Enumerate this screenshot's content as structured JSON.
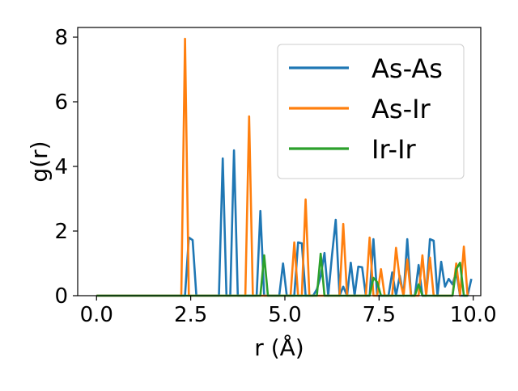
{
  "chart_data": {
    "type": "line",
    "title": "",
    "xlabel": "r (Å)",
    "ylabel": "g(r)",
    "xlim": [
      -0.5,
      10.2
    ],
    "ylim": [
      0,
      8.3
    ],
    "xticks": [
      0.0,
      2.5,
      5.0,
      7.5,
      10.0
    ],
    "xtick_labels": [
      "0.0",
      "2.5",
      "5.0",
      "7.5",
      "10.0"
    ],
    "yticks": [
      0,
      2,
      4,
      6,
      8
    ],
    "ytick_labels": [
      "0",
      "2",
      "4",
      "6",
      "8"
    ],
    "legend": {
      "position": "upper-right",
      "entries": [
        "As-As",
        "As-Ir",
        "Ir-Ir"
      ]
    },
    "grid": false,
    "series": [
      {
        "name": "As-As",
        "color": "#1f77b4",
        "x": [
          0.0,
          2.35,
          2.45,
          2.55,
          2.65,
          2.75,
          3.25,
          3.35,
          3.45,
          3.55,
          3.65,
          3.75,
          4.25,
          4.35,
          4.45,
          4.85,
          4.95,
          5.05,
          5.25,
          5.35,
          5.45,
          5.55,
          5.65,
          5.75,
          5.85,
          5.95,
          6.05,
          6.15,
          6.25,
          6.35,
          6.45,
          6.55,
          6.65,
          6.75,
          6.85,
          6.95,
          7.05,
          7.15,
          7.25,
          7.35,
          7.45,
          7.55,
          7.65,
          7.75,
          7.85,
          7.95,
          8.05,
          8.15,
          8.25,
          8.35,
          8.45,
          8.55,
          8.65,
          8.75,
          8.85,
          8.95,
          9.05,
          9.15,
          9.25,
          9.35,
          9.45,
          9.55,
          9.65,
          9.75,
          9.85,
          9.95
        ],
        "y": [
          0.0,
          0.0,
          1.8,
          1.72,
          0.0,
          0.0,
          0.0,
          4.25,
          0.0,
          0.0,
          4.5,
          0.0,
          0.0,
          2.62,
          0.0,
          0.0,
          1.0,
          0.0,
          0.0,
          1.65,
          1.62,
          0.0,
          0.0,
          0.0,
          0.2,
          0.6,
          1.32,
          0.0,
          1.25,
          2.35,
          0.0,
          0.28,
          0.0,
          1.02,
          0.0,
          0.9,
          0.88,
          0.0,
          0.0,
          1.75,
          0.0,
          0.0,
          0.0,
          0.0,
          0.72,
          0.0,
          0.62,
          0.0,
          1.75,
          0.0,
          0.0,
          0.95,
          0.0,
          0.0,
          1.75,
          1.7,
          0.0,
          1.05,
          0.28,
          0.52,
          0.35,
          0.75,
          0.0,
          0.0,
          0.0,
          0.52
        ]
      },
      {
        "name": "As-Ir",
        "color": "#ff7f0e",
        "x": [
          0.0,
          2.25,
          2.35,
          2.45,
          3.95,
          4.05,
          4.15,
          4.25,
          5.15,
          5.25,
          5.35,
          5.45,
          5.55,
          5.65,
          6.45,
          6.55,
          6.65,
          7.15,
          7.25,
          7.35,
          7.45,
          7.55,
          7.65,
          7.85,
          7.95,
          8.05,
          8.15,
          8.25,
          8.35,
          8.55,
          8.65,
          8.75,
          8.85,
          8.95,
          9.45,
          9.55,
          9.65,
          9.75,
          9.85
        ],
        "y": [
          0.0,
          0.0,
          7.95,
          0.0,
          0.0,
          5.55,
          0.0,
          0.0,
          0.0,
          1.65,
          0.0,
          0.0,
          2.98,
          0.0,
          0.0,
          2.22,
          0.0,
          0.0,
          1.8,
          0.0,
          0.0,
          0.82,
          0.0,
          0.0,
          1.48,
          0.5,
          0.0,
          1.12,
          0.0,
          0.0,
          1.25,
          0.0,
          1.18,
          0.0,
          0.0,
          1.0,
          0.0,
          1.52,
          0.0
        ]
      },
      {
        "name": "Ir-Ir",
        "color": "#2ca02c",
        "x": [
          0.0,
          4.35,
          4.45,
          4.55,
          5.85,
          5.95,
          6.05,
          7.25,
          7.35,
          7.45,
          7.55,
          8.45,
          8.55,
          8.65,
          9.45,
          9.55,
          9.65,
          9.75,
          9.85
        ],
        "y": [
          0.0,
          0.0,
          1.25,
          0.0,
          0.0,
          1.3,
          0.0,
          0.0,
          0.55,
          0.42,
          0.0,
          0.0,
          0.35,
          0.0,
          0.0,
          0.82,
          1.02,
          0.0,
          0.0
        ]
      }
    ]
  }
}
